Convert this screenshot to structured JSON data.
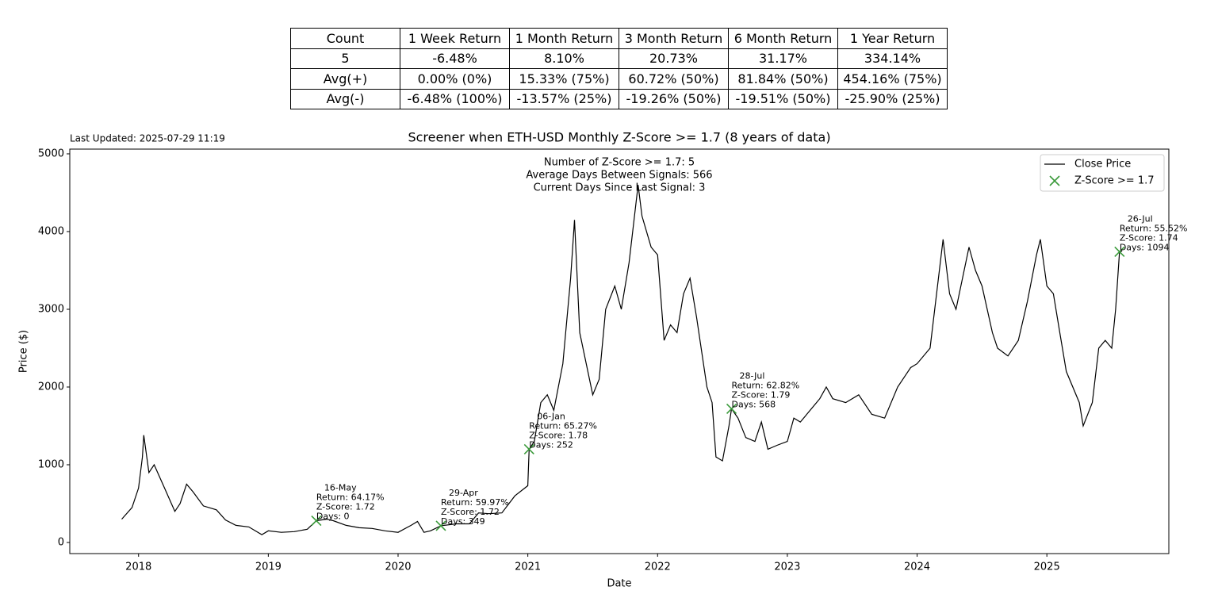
{
  "table": {
    "rows": [
      [
        "Count",
        "1 Week Return",
        "1 Month Return",
        "3 Month Return",
        "6 Month Return",
        "1 Year Return"
      ],
      [
        "5",
        "-6.48%",
        "8.10%",
        "20.73%",
        "31.17%",
        "334.14%"
      ],
      [
        "Avg(+)",
        "0.00% (0%)",
        "15.33% (75%)",
        "60.72% (50%)",
        "81.84% (50%)",
        "454.16% (75%)"
      ],
      [
        "Avg(-)",
        "-6.48% (100%)",
        "-13.57% (25%)",
        "-19.26% (50%)",
        "-19.51% (50%)",
        "-25.90% (25%)"
      ]
    ]
  },
  "chart_data": {
    "type": "line",
    "title": "Screener when ETH-USD Monthly Z-Score >= 1.7 (8 years of data)",
    "subtitle": "Last Updated: 2025-07-29 11:19",
    "annotation": [
      "Number of Z-Score >= 1.7: 5",
      "Average Days Between Signals: 566",
      "Current Days Since Last Signal: 3"
    ],
    "xlabel": "Date",
    "ylabel": "Price ($)",
    "xlim": [
      2017.47,
      2025.94
    ],
    "xticks": [
      2018,
      2019,
      2020,
      2021,
      2022,
      2023,
      2024,
      2025
    ],
    "ylim": [
      -143,
      5061
    ],
    "yticks": [
      0,
      1000,
      2000,
      3000,
      4000,
      5000
    ],
    "legend": "upper right",
    "series": [
      {
        "name": "Close Price",
        "color": "#000000",
        "type": "line",
        "x": [
          2017.87,
          2017.95,
          2018.0,
          2018.03,
          2018.04,
          2018.08,
          2018.12,
          2018.2,
          2018.28,
          2018.32,
          2018.37,
          2018.42,
          2018.5,
          2018.6,
          2018.67,
          2018.75,
          2018.85,
          2018.95,
          2019.0,
          2019.1,
          2019.2,
          2019.3,
          2019.37,
          2019.45,
          2019.5,
          2019.6,
          2019.7,
          2019.8,
          2019.9,
          2020.0,
          2020.1,
          2020.15,
          2020.2,
          2020.25,
          2020.33,
          2020.45,
          2020.55,
          2020.62,
          2020.7,
          2020.8,
          2020.9,
          2021.0,
          2021.01,
          2021.05,
          2021.1,
          2021.15,
          2021.2,
          2021.27,
          2021.33,
          2021.36,
          2021.4,
          2021.45,
          2021.5,
          2021.55,
          2021.6,
          2021.67,
          2021.72,
          2021.78,
          2021.85,
          2021.88,
          2021.95,
          2022.0,
          2022.05,
          2022.1,
          2022.15,
          2022.2,
          2022.25,
          2022.3,
          2022.38,
          2022.42,
          2022.45,
          2022.5,
          2022.55,
          2022.57,
          2022.62,
          2022.68,
          2022.75,
          2022.8,
          2022.85,
          2022.92,
          2023.0,
          2023.05,
          2023.1,
          2023.15,
          2023.25,
          2023.3,
          2023.35,
          2023.45,
          2023.55,
          2023.65,
          2023.75,
          2023.85,
          2023.95,
          2024.0,
          2024.1,
          2024.15,
          2024.2,
          2024.25,
          2024.3,
          2024.4,
          2024.45,
          2024.5,
          2024.58,
          2024.62,
          2024.7,
          2024.78,
          2024.85,
          2024.92,
          2024.95,
          2025.0,
          2025.05,
          2025.1,
          2025.15,
          2025.25,
          2025.28,
          2025.35,
          2025.4,
          2025.45,
          2025.5,
          2025.53,
          2025.56,
          2025.58
        ],
        "values": [
          300,
          450,
          700,
          1100,
          1380,
          900,
          1000,
          700,
          400,
          500,
          750,
          650,
          470,
          420,
          290,
          220,
          200,
          100,
          150,
          130,
          140,
          170,
          280,
          300,
          280,
          220,
          190,
          180,
          150,
          130,
          220,
          270,
          130,
          150,
          215,
          240,
          240,
          380,
          370,
          380,
          600,
          730,
          1200,
          1300,
          1800,
          1900,
          1700,
          2300,
          3400,
          4150,
          2700,
          2300,
          1900,
          2100,
          3000,
          3300,
          3000,
          3600,
          4600,
          4200,
          3800,
          3700,
          2600,
          2800,
          2700,
          3200,
          3400,
          2900,
          2000,
          1800,
          1100,
          1050,
          1500,
          1720,
          1600,
          1350,
          1300,
          1550,
          1200,
          1250,
          1300,
          1600,
          1550,
          1650,
          1850,
          2000,
          1850,
          1800,
          1900,
          1650,
          1600,
          2000,
          2250,
          2300,
          2500,
          3200,
          3900,
          3200,
          3000,
          3800,
          3500,
          3300,
          2700,
          2500,
          2400,
          2600,
          3100,
          3700,
          3900,
          3300,
          3200,
          2700,
          2200,
          1800,
          1500,
          1800,
          2500,
          2600,
          2500,
          3000,
          3740,
          3750
        ]
      },
      {
        "name": "Z-Score >= 1.7",
        "color": "#3a9a3a",
        "type": "scatter",
        "x": [
          2019.37,
          2020.33,
          2021.01,
          2022.57,
          2025.56
        ],
        "values": [
          280,
          215,
          1200,
          1720,
          3740
        ],
        "annotations": [
          [
            "16-May",
            "Return: 64.17%",
            "Z-Score: 1.72",
            "Days: 0"
          ],
          [
            "29-Apr",
            "Return: 59.97%",
            "Z-Score: 1.72",
            "Days: 349"
          ],
          [
            "06-Jan",
            "Return: 65.27%",
            "Z-Score: 1.78",
            "Days: 252"
          ],
          [
            "28-Jul",
            "Return: 62.82%",
            "Z-Score: 1.79",
            "Days: 568"
          ],
          [
            "26-Jul",
            "Return: 55.52%",
            "Z-Score: 1.74",
            "Days: 1094"
          ]
        ]
      }
    ]
  }
}
